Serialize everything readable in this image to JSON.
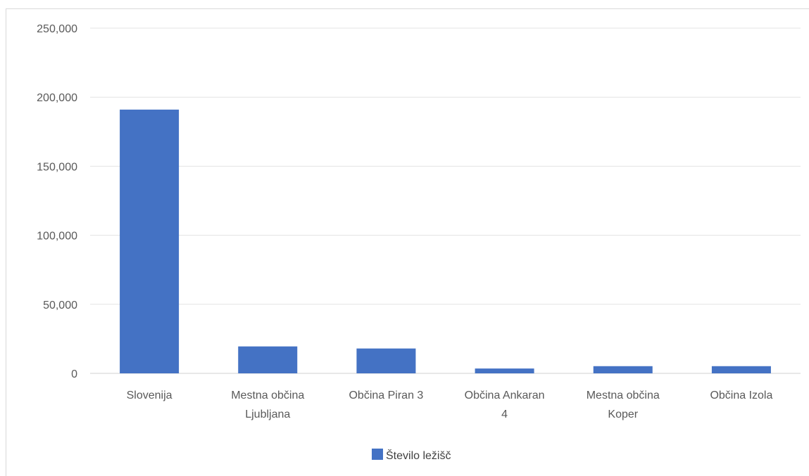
{
  "chart_data": {
    "type": "bar",
    "title": "",
    "xlabel": "",
    "ylabel": "",
    "categories": [
      [
        "Slovenija"
      ],
      [
        "Mestna občina",
        "Ljubljana"
      ],
      [
        "Občina Piran 3"
      ],
      [
        "Občina Ankaran",
        "4"
      ],
      [
        "Mestna občina",
        "Koper"
      ],
      [
        "Občina Izola"
      ]
    ],
    "series": [
      {
        "name": "Število ležišč",
        "color": "#4472c4",
        "values": [
          191000,
          19500,
          18000,
          3500,
          5200,
          5200
        ]
      }
    ],
    "ylim": [
      0,
      250000
    ],
    "yticks": [
      0,
      50000,
      100000,
      150000,
      200000,
      250000
    ],
    "ytick_labels": [
      "0",
      "50,000",
      "100,000",
      "150,000",
      "200,000",
      "250,000"
    ],
    "grid": true,
    "legend_position": "bottom"
  }
}
